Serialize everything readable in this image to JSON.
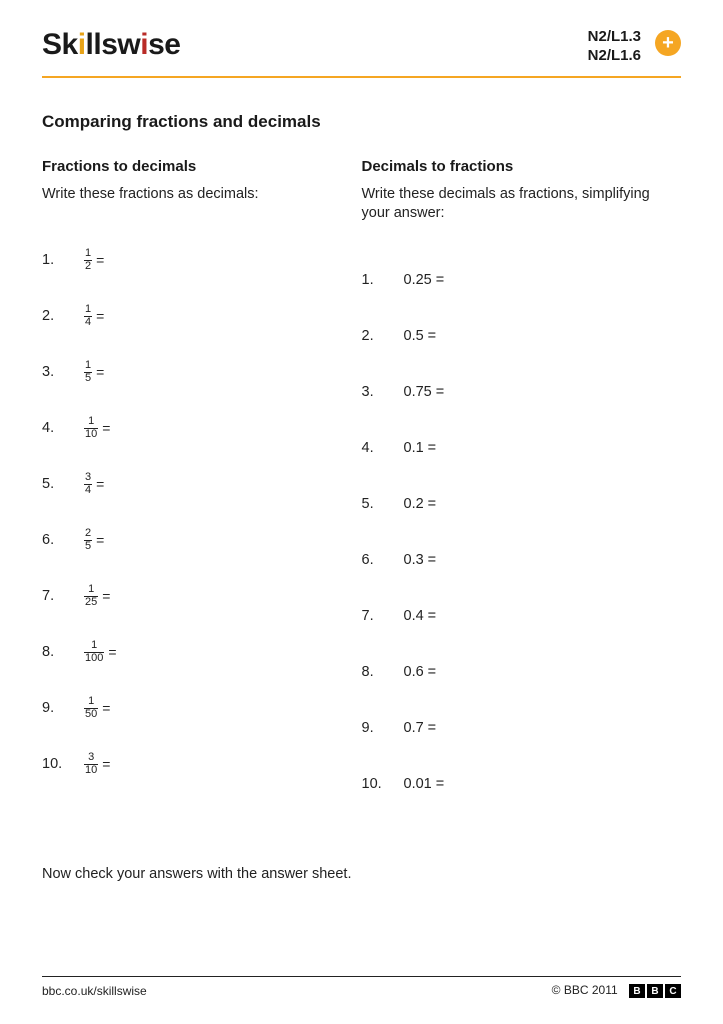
{
  "brand": {
    "name": "Skillswise",
    "text_color": "#1a1a1a",
    "dot_colors": [
      "#e8a317",
      "#b92b27"
    ]
  },
  "header": {
    "codes": [
      "N2/L1.3",
      "N2/L1.6"
    ],
    "plus": "+",
    "rule_color": "#f5a623"
  },
  "title": "Comparing fractions and decimals",
  "left": {
    "heading": "Fractions to decimals",
    "instruction": "Write these fractions as decimals:",
    "items": [
      {
        "n": "1.",
        "num": "1",
        "den": "2"
      },
      {
        "n": "2.",
        "num": "1",
        "den": "4"
      },
      {
        "n": "3.",
        "num": "1",
        "den": "5"
      },
      {
        "n": "4.",
        "num": "1",
        "den": "10"
      },
      {
        "n": "5.",
        "num": "3",
        "den": "4"
      },
      {
        "n": "6.",
        "num": "2",
        "den": "5"
      },
      {
        "n": "7.",
        "num": "1",
        "den": "25"
      },
      {
        "n": "8.",
        "num": "1",
        "den": "100"
      },
      {
        "n": "9.",
        "num": "1",
        "den": "50"
      },
      {
        "n": "10.",
        "num": "3",
        "den": "10"
      }
    ]
  },
  "right": {
    "heading": "Decimals to fractions",
    "instruction": "Write these decimals as fractions, simplifying your answer:",
    "items": [
      {
        "n": "1.",
        "val": "0.25 ="
      },
      {
        "n": "2.",
        "val": "0.5 ="
      },
      {
        "n": "3.",
        "val": "0.75 ="
      },
      {
        "n": "4.",
        "val": "0.1 ="
      },
      {
        "n": "5.",
        "val": "0.2 ="
      },
      {
        "n": "6.",
        "val": "0.3 ="
      },
      {
        "n": "7.",
        "val": "0.4 ="
      },
      {
        "n": "8.",
        "val": "0.6 ="
      },
      {
        "n": "9.",
        "val": "0.7 ="
      },
      {
        "n": "10.",
        "val": "0.01 ="
      }
    ]
  },
  "equals": "=",
  "footnote": "Now check your answers with the answer sheet.",
  "footer": {
    "url": "bbc.co.uk/skillswise",
    "copyright": "© BBC 2011",
    "bbc": [
      "B",
      "B",
      "C"
    ]
  }
}
